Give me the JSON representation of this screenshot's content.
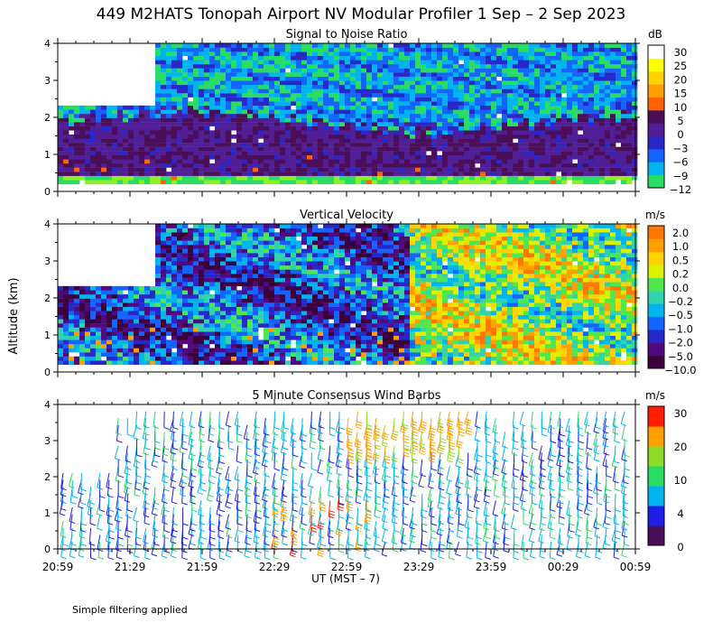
{
  "title": "449 M2HATS Tonopah Airport NV Modular Profiler  1 Sep –  2 Sep 2023",
  "y_axis_label": "Altitude (km)",
  "x_axis_label": "UT  (MST – 7)",
  "footer_note": "Simple filtering applied",
  "x_ticks": [
    "20:59",
    "21:29",
    "21:59",
    "22:29",
    "22:59",
    "23:29",
    "23:59",
    "00:29",
    "00:59"
  ],
  "colors": {
    "snr_scale": [
      "#8cf028",
      "#28dc64",
      "#00b4f0",
      "#1464ff",
      "#2828c8",
      "#501e96",
      "#4b0f5a",
      "#ff6400",
      "#ffa000",
      "#ffd200",
      "#ffff00",
      "#ffffff"
    ],
    "vv_scale": [
      "#3c003c",
      "#500a7d",
      "#2828c8",
      "#1464ff",
      "#00b4f0",
      "#32d2aa",
      "#50e650",
      "#dcf000",
      "#ffd200",
      "#ffa000",
      "#ff7800",
      "#ff2800"
    ],
    "wind_scale": [
      "#4b0f5a",
      "#1e1ee6",
      "#00b4f0",
      "#28dc64",
      "#8cdc28",
      "#ffa000",
      "#ff1e00"
    ]
  },
  "chart_data": [
    {
      "type": "heatmap",
      "title": "Signal to Noise Ratio",
      "unit": "dB",
      "x": [
        "20:59",
        "21:29",
        "21:59",
        "22:29",
        "22:59",
        "23:29",
        "23:59",
        "00:29",
        "00:59"
      ],
      "ylim": [
        0,
        4
      ],
      "y_ticks": [
        "0",
        "1",
        "2",
        "3",
        "4"
      ],
      "colorbar_labels": [
        "30",
        "25",
        "20",
        "15",
        "10",
        "5",
        "0",
        "−3",
        "−6",
        "−9",
        "−12"
      ],
      "summary": {
        "boundary_layer_top_km": 1.9,
        "low_level_value_db": 0,
        "upper_level_value_db": -6,
        "no_data_block": {
          "from": "20:59",
          "to": "21:39",
          "above_km": 2.3
        }
      }
    },
    {
      "type": "heatmap",
      "title": "Vertical Velocity",
      "unit": "m/s",
      "x": [
        "20:59",
        "21:29",
        "21:59",
        "22:29",
        "22:59",
        "23:29",
        "23:59",
        "00:29",
        "00:59"
      ],
      "ylim": [
        0,
        4
      ],
      "y_ticks": [
        "0",
        "1",
        "2",
        "3",
        "4"
      ],
      "colorbar_labels": [
        "2.0",
        "1.0",
        "0.5",
        "0.2",
        "0.0",
        "−0.2",
        "−0.5",
        "−1.0",
        "−2.0",
        "−5.0",
        "−10.0"
      ],
      "summary": {
        "early_upper_level_m_s": -1.0,
        "late_period_m_s": 0.2,
        "no_data_block": {
          "from": "20:59",
          "to": "21:39",
          "above_km": 2.3
        }
      }
    },
    {
      "type": "scatter",
      "title": "5 Minute Consensus Wind Barbs",
      "unit": "m/s",
      "x": [
        "20:59",
        "21:29",
        "21:59",
        "22:29",
        "22:59",
        "23:29",
        "23:59",
        "00:29",
        "00:59"
      ],
      "ylim": [
        0,
        4
      ],
      "y_ticks": [
        "0",
        "1",
        "2",
        "3",
        "4"
      ],
      "colorbar_labels": [
        "30",
        "20",
        "10",
        "4",
        "0"
      ],
      "summary": {
        "typical_speed_m_s": 8,
        "upper_level_speed_m_s": 18,
        "max_speed_m_s": 30
      }
    }
  ]
}
